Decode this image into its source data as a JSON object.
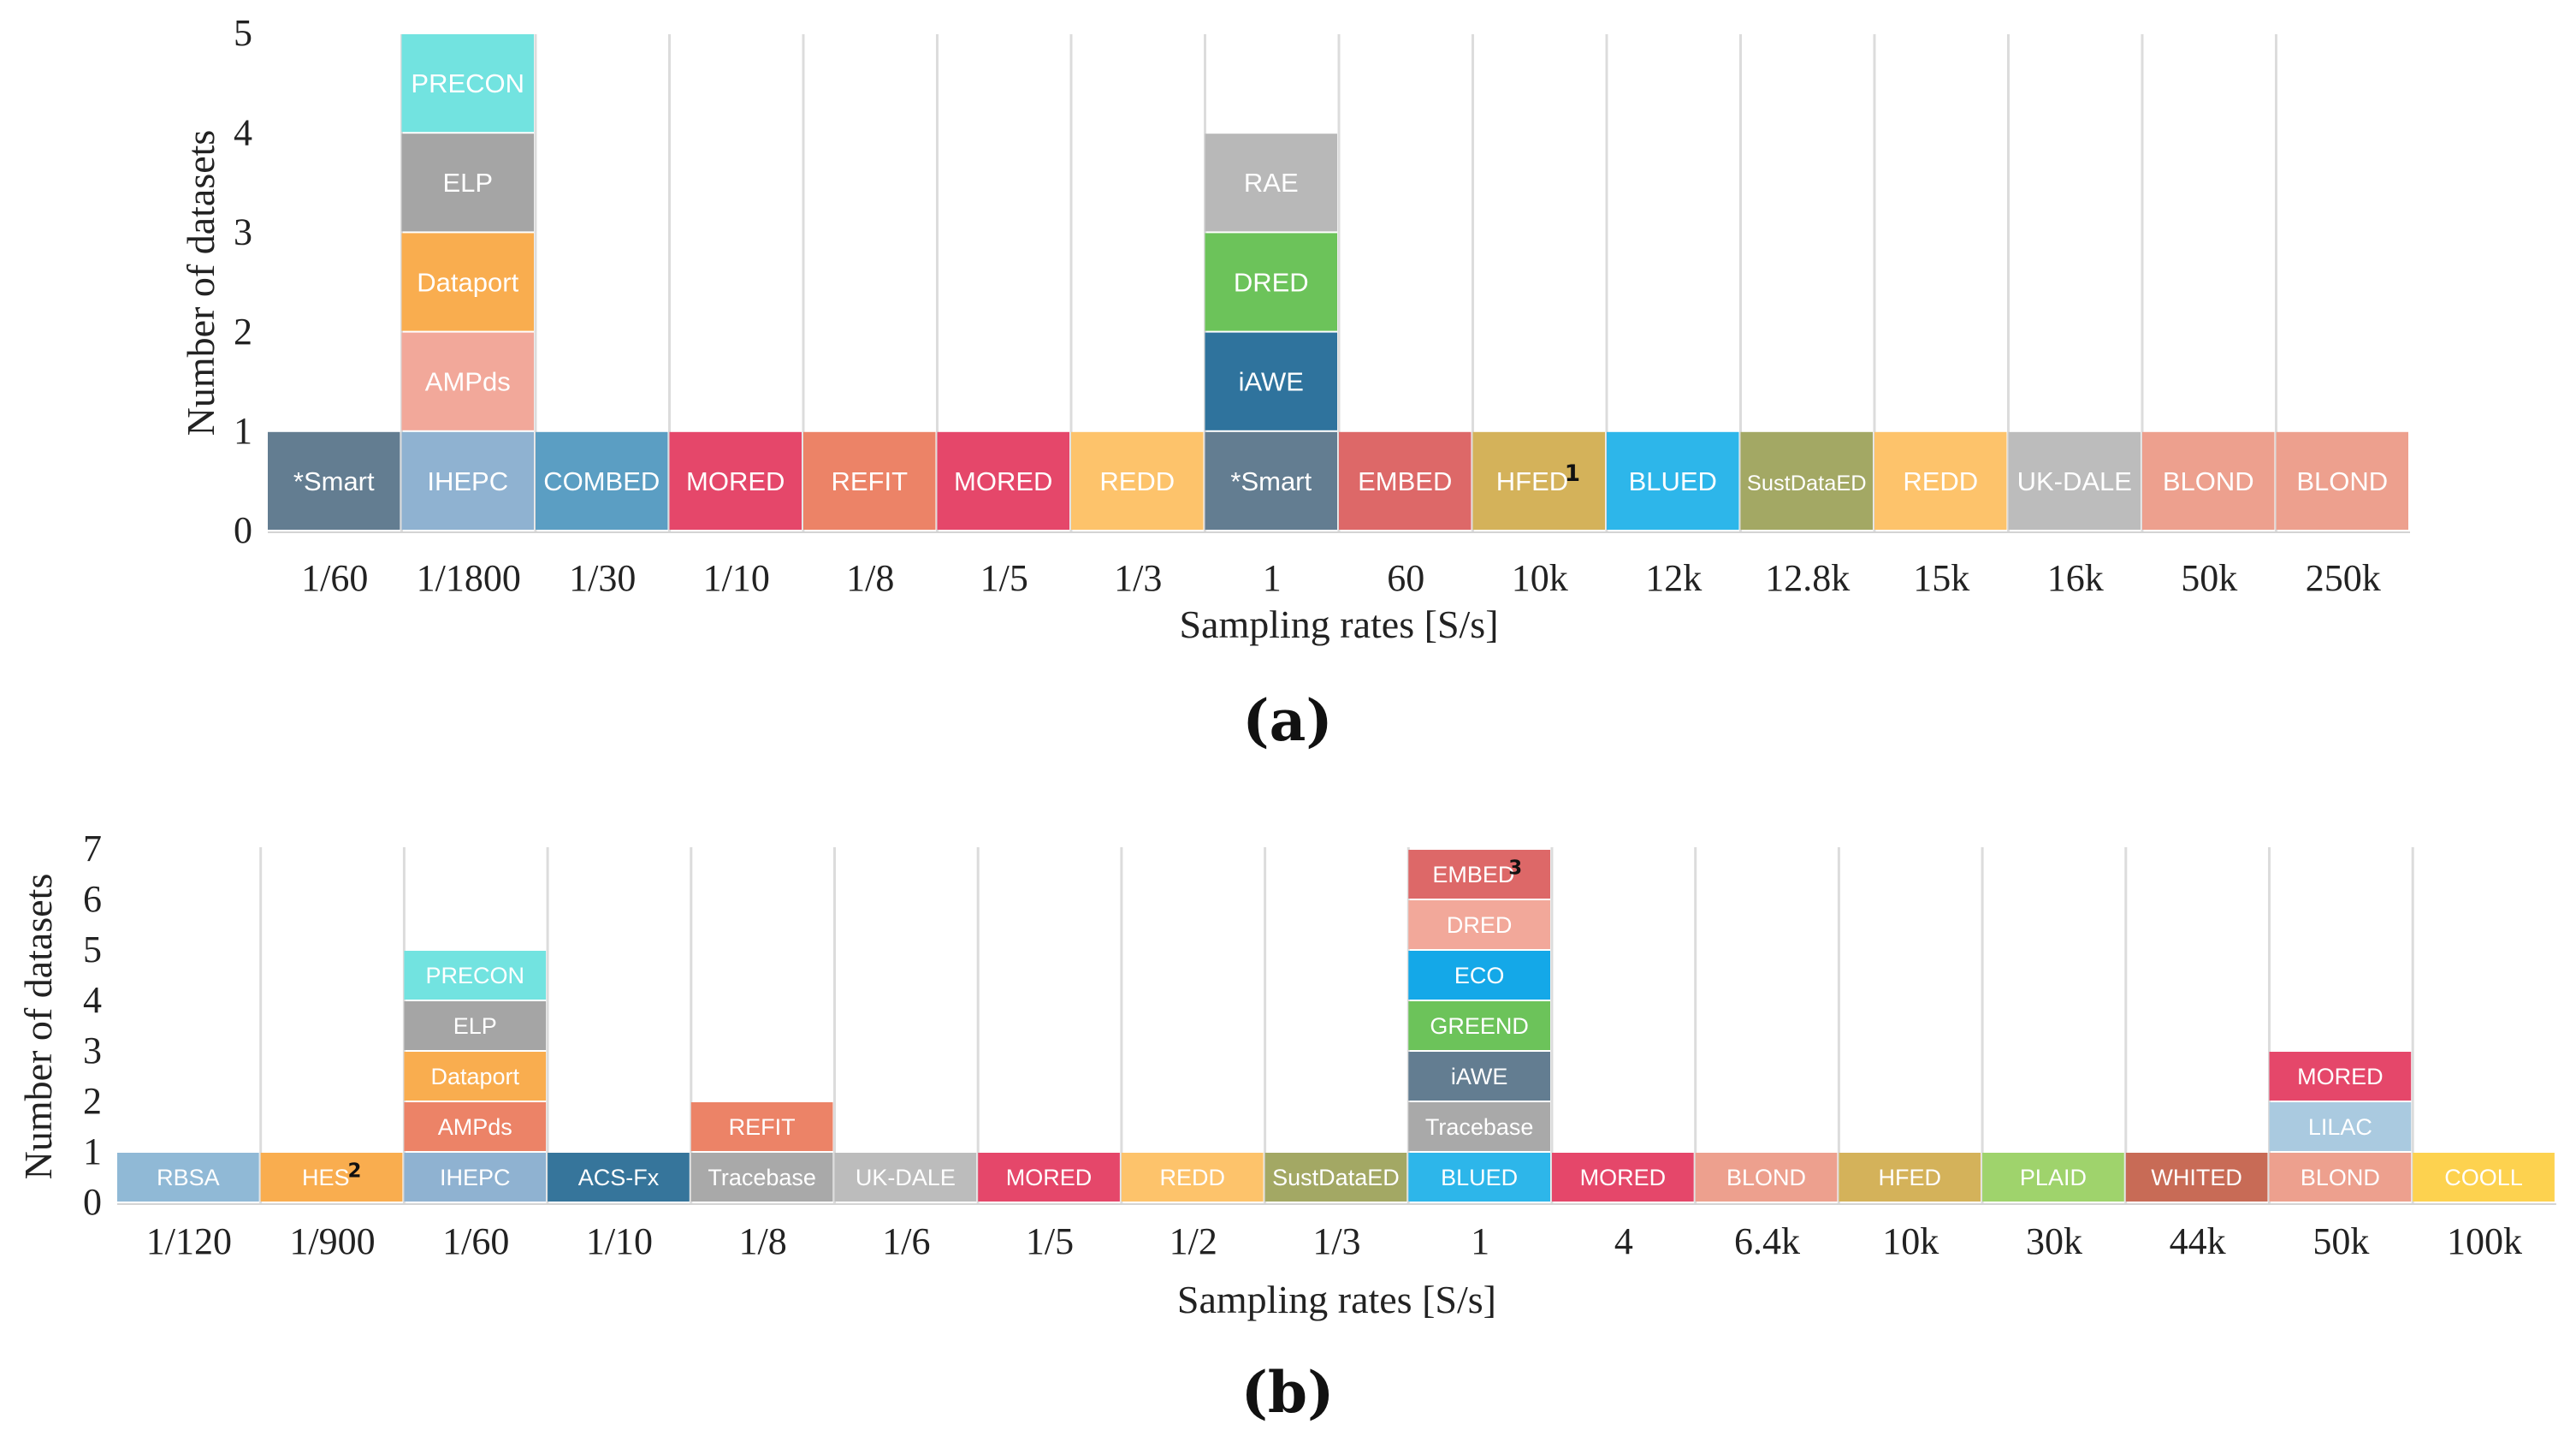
{
  "chart_data": [
    {
      "type": "bar",
      "stacked": true,
      "panel_label": "(a)",
      "xlabel": "Sampling rates [S/s]",
      "ylabel": "Number of datasets",
      "ylim": [
        0,
        5
      ],
      "yticks": [
        "0",
        "1",
        "2",
        "3",
        "4",
        "5"
      ],
      "grid": "vertical lines between categories",
      "categories": [
        "1/60",
        "1/1800",
        "1/30",
        "1/10",
        "1/8",
        "1/5",
        "1/3",
        "1",
        "60",
        "10k",
        "12k",
        "12.8k",
        "15k",
        "16k",
        "50k",
        "250k"
      ],
      "stacks": [
        [
          {
            "label": "*Smart",
            "color": "#637d91"
          }
        ],
        [
          {
            "label": "IHEPC",
            "color": "#8fb2d1"
          },
          {
            "label": "AMPds",
            "color": "#f2a89a"
          },
          {
            "label": "Dataport",
            "color": "#f9ad4f"
          },
          {
            "label": "ELP",
            "color": "#a5a5a5"
          },
          {
            "label": "PRECON",
            "color": "#72e3e0"
          }
        ],
        [
          {
            "label": "COMBED",
            "color": "#5b9ec3"
          }
        ],
        [
          {
            "label": "MORED",
            "color": "#e5476a"
          }
        ],
        [
          {
            "label": "REFIT",
            "color": "#ec8367"
          }
        ],
        [
          {
            "label": "MORED",
            "color": "#e5476a"
          }
        ],
        [
          {
            "label": "REDD",
            "color": "#fdc36b"
          }
        ],
        [
          {
            "label": "*Smart",
            "color": "#637d91"
          },
          {
            "label": "iAWE",
            "color": "#2f739d"
          },
          {
            "label": "DRED",
            "color": "#6cc35a"
          },
          {
            "label": "RAE",
            "color": "#b8b8b8"
          }
        ],
        [
          {
            "label": "EMBED",
            "color": "#dd6868"
          }
        ],
        [
          {
            "label": "HFED",
            "sup": "1",
            "color": "#d4b25a"
          }
        ],
        [
          {
            "label": "BLUED",
            "color": "#2db6ea"
          }
        ],
        [
          {
            "label": "SustDataED",
            "color": "#a3a864"
          }
        ],
        [
          {
            "label": "REDD",
            "color": "#fdc36b"
          }
        ],
        [
          {
            "label": "UK-DALE",
            "color": "#bcbcbc"
          }
        ],
        [
          {
            "label": "BLOND",
            "color": "#eda08e"
          }
        ],
        [
          {
            "label": "BLOND",
            "color": "#eda08e"
          }
        ]
      ]
    },
    {
      "type": "bar",
      "stacked": true,
      "panel_label": "(b)",
      "xlabel": "Sampling rates [S/s]",
      "ylabel": "Number of datasets",
      "ylim": [
        0,
        7
      ],
      "yticks": [
        "0",
        "1",
        "2",
        "3",
        "4",
        "5",
        "6",
        "7"
      ],
      "grid": "vertical lines between categories",
      "categories": [
        "1/120",
        "1/900",
        "1/60",
        "1/10",
        "1/8",
        "1/6",
        "1/5",
        "1/2",
        "1/3",
        "1",
        "4",
        "6.4k",
        "10k",
        "30k",
        "44k",
        "50k",
        "100k"
      ],
      "stacks": [
        [
          {
            "label": "RBSA",
            "color": "#90b9d6"
          }
        ],
        [
          {
            "label": "HES",
            "sup": "2",
            "color": "#f9ad4f"
          }
        ],
        [
          {
            "label": "IHEPC",
            "color": "#8fb2d1"
          },
          {
            "label": "AMPds",
            "color": "#ec8367"
          },
          {
            "label": "Dataport",
            "color": "#f9ad4f"
          },
          {
            "label": "ELP",
            "color": "#a5a5a5"
          },
          {
            "label": "PRECON",
            "color": "#72e3e0"
          }
        ],
        [
          {
            "label": "ACS-Fx",
            "color": "#36759b"
          }
        ],
        [
          {
            "label": "Tracebase",
            "color": "#a9a9a9"
          },
          {
            "label": "REFIT",
            "color": "#ec8367"
          }
        ],
        [
          {
            "label": "UK-DALE",
            "color": "#bcbcbc"
          }
        ],
        [
          {
            "label": "MORED",
            "color": "#e5476a"
          }
        ],
        [
          {
            "label": "REDD",
            "color": "#fdc36b"
          }
        ],
        [
          {
            "label": "SustDataED",
            "color": "#a3a864"
          }
        ],
        [
          {
            "label": "BLUED",
            "color": "#2db6ea"
          },
          {
            "label": "Tracebase",
            "color": "#a9a9a9"
          },
          {
            "label": "iAWE",
            "color": "#637d91"
          },
          {
            "label": "GREEND",
            "color": "#6cc35a"
          },
          {
            "label": "ECO",
            "color": "#14a8e8"
          },
          {
            "label": "DRED",
            "color": "#f2a89a"
          },
          {
            "label": "EMBED",
            "sup": "3",
            "color": "#dd6868"
          }
        ],
        [
          {
            "label": "MORED",
            "color": "#e5476a"
          }
        ],
        [
          {
            "label": "BLOND",
            "color": "#eda08e"
          }
        ],
        [
          {
            "label": "HFED",
            "color": "#d4b25a"
          }
        ],
        [
          {
            "label": "PLAID",
            "color": "#9fd36c"
          }
        ],
        [
          {
            "label": "WHITED",
            "color": "#c86b56"
          }
        ],
        [
          {
            "label": "BLOND",
            "color": "#eda08e"
          },
          {
            "label": "LILAC",
            "color": "#aacae0"
          },
          {
            "label": "MORED",
            "color": "#e5476a"
          }
        ],
        [
          {
            "label": "COOLL",
            "color": "#fdd24f"
          }
        ]
      ]
    }
  ]
}
